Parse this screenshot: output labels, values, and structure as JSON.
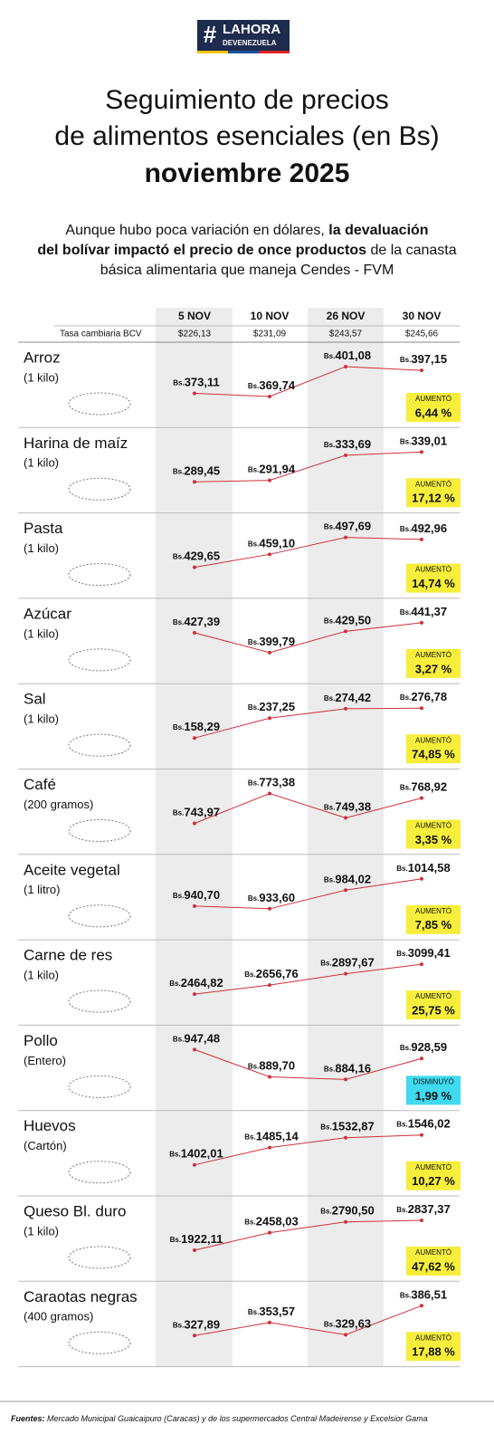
{
  "logo": {
    "hash": "#",
    "main": "LAHORA",
    "sub": "DEVENEZUELA"
  },
  "title": [
    "Seguimiento de precios",
    "de alimentos esenciales (en Bs)",
    "noviembre 2025"
  ],
  "intro": [
    [
      {
        "text": "Aunque hubo poca variación en dólares, ",
        "bold": false
      },
      {
        "text": "la devaluación",
        "bold": true
      }
    ],
    [
      {
        "text": "del bolívar impactó el precio de once productos",
        "bold": true
      },
      {
        "text": " de la canasta",
        "bold": false
      }
    ],
    [
      {
        "text": "básica alimentaria que maneja Cendes - FVM",
        "bold": false
      }
    ]
  ],
  "columns": [
    "5 NOV",
    "10 NOV",
    "26 NOV",
    "30 NOV"
  ],
  "rate_label": "Tasa cambiaria BCV",
  "rates": [
    {
      "value": 226.13,
      "label": "$226,13"
    },
    {
      "value": 231.09,
      "label": "$231,09"
    },
    {
      "value": 243.57,
      "label": "$243,57"
    },
    {
      "value": 245.66,
      "label": "$245,66"
    }
  ],
  "currency": "Bs.",
  "line_color": "#d0303a",
  "chart_data": [
    {
      "type": "line",
      "title": "Arroz",
      "subtitle": "(1 kilo)",
      "values": [
        373.11,
        369.74,
        401.08,
        397.15
      ],
      "value_labels": [
        "373,11",
        "369,74",
        "401,08",
        "397,15"
      ],
      "change_label": "AUMENTÓ",
      "change": 6.44,
      "change_text": "6,44 %",
      "badge_color": "#f6ee3a"
    },
    {
      "type": "line",
      "title": "Harina de maíz",
      "subtitle": "(1 kilo)",
      "values": [
        289.45,
        291.94,
        333.69,
        339.01
      ],
      "value_labels": [
        "289,45",
        "291,94",
        "333,69",
        "339,01"
      ],
      "change_label": "AUMENTÓ",
      "change": 17.12,
      "change_text": "17,12 %",
      "badge_color": "#f6ee3a"
    },
    {
      "type": "line",
      "title": "Pasta",
      "subtitle": "(1 kilo)",
      "values": [
        429.65,
        459.1,
        497.69,
        492.96
      ],
      "value_labels": [
        "429,65",
        "459,10",
        "497,69",
        "492,96"
      ],
      "change_label": "AUMENTÓ",
      "change": 14.74,
      "change_text": "14,74 %",
      "badge_color": "#f6ee3a"
    },
    {
      "type": "line",
      "title": "Azúcar",
      "subtitle": "(1 kilo)",
      "values": [
        427.39,
        399.79,
        429.5,
        441.37
      ],
      "value_labels": [
        "427,39",
        "399,79",
        "429,50",
        "441,37"
      ],
      "change_label": "AUMENTÓ",
      "change": 3.27,
      "change_text": "3,27 %",
      "badge_color": "#f6ee3a"
    },
    {
      "type": "line",
      "title": "Sal",
      "subtitle": "(1 kilo)",
      "values": [
        158.29,
        237.25,
        274.42,
        276.78
      ],
      "value_labels": [
        "158,29",
        "237,25",
        "274,42",
        "276,78"
      ],
      "change_label": "AUMENTÓ",
      "change": 74.85,
      "change_text": "74,85 %",
      "badge_color": "#f6ee3a"
    },
    {
      "type": "line",
      "title": "Café",
      "subtitle": "(200 gramos)",
      "values": [
        743.97,
        773.38,
        749.38,
        768.92
      ],
      "value_labels": [
        "743,97",
        "773,38",
        "749,38",
        "768,92"
      ],
      "change_label": "AUMENTÓ",
      "change": 3.35,
      "change_text": "3,35 %",
      "badge_color": "#f6ee3a"
    },
    {
      "type": "line",
      "title": "Aceite vegetal",
      "subtitle": "(1 litro)",
      "values": [
        940.7,
        933.6,
        984.02,
        1014.58
      ],
      "value_labels": [
        "940,70",
        "933,60",
        "984,02",
        "1014,58"
      ],
      "change_label": "AUMENTÓ",
      "change": 7.85,
      "change_text": "7,85 %",
      "badge_color": "#f6ee3a"
    },
    {
      "type": "line",
      "title": "Carne de res",
      "subtitle": "(1 kilo)",
      "values": [
        2464.82,
        2656.76,
        2897.67,
        3099.41
      ],
      "value_labels": [
        "2464,82",
        "2656,76",
        "2897,67",
        "3099,41"
      ],
      "change_label": "AUMENTÓ",
      "change": 25.75,
      "change_text": "25,75 %",
      "badge_color": "#f6ee3a"
    },
    {
      "type": "line",
      "title": "Pollo",
      "subtitle": "(Entero)",
      "values": [
        947.48,
        889.7,
        884.16,
        928.59
      ],
      "value_labels": [
        "947,48",
        "889,70",
        "884,16",
        "928,59"
      ],
      "change_label": "DISMINUYÓ",
      "change": 1.99,
      "change_text": "1,99 %",
      "badge_color": "#3fd9f0"
    },
    {
      "type": "line",
      "title": "Huevos",
      "subtitle": "(Cartón)",
      "values": [
        1402.01,
        1485.14,
        1532.87,
        1546.02
      ],
      "value_labels": [
        "1402,01",
        "1485,14",
        "1532,87",
        "1546,02"
      ],
      "change_label": "AUMENTÓ",
      "change": 10.27,
      "change_text": "10,27 %",
      "badge_color": "#f6ee3a"
    },
    {
      "type": "line",
      "title": "Queso Bl. duro",
      "subtitle": "(1 kilo)",
      "values": [
        1922.11,
        2458.03,
        2790.5,
        2837.37
      ],
      "value_labels": [
        "1922,11",
        "2458,03",
        "2790,50",
        "2837,37"
      ],
      "change_label": "AUMENTÓ",
      "change": 47.62,
      "change_text": "47,62 %",
      "badge_color": "#f6ee3a"
    },
    {
      "type": "line",
      "title": "Caraotas negras",
      "subtitle": "(400 gramos)",
      "values": [
        327.89,
        353.57,
        329.63,
        386.51
      ],
      "value_labels": [
        "327,89",
        "353,57",
        "329,63",
        "386,51"
      ],
      "change_label": "AUMENTÓ",
      "change": 17.88,
      "change_text": "17,88 %",
      "badge_color": "#f6ee3a"
    }
  ],
  "footer": {
    "lead": "Fuentes:",
    "text": " Mercado Municipal Guaicaipuro (Caracas) y de los supermercados Central Madeirense y Excelsior Gama"
  }
}
